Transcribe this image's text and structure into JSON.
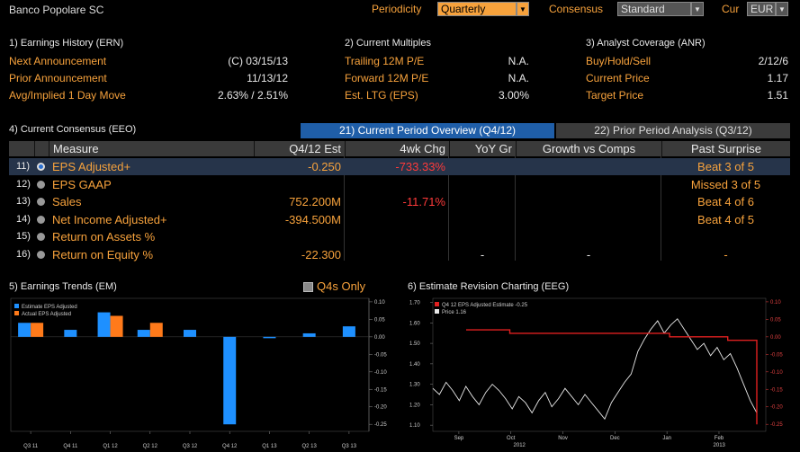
{
  "header": {
    "security": "Banco Popolare SC",
    "periodicity_label": "Periodicity",
    "periodicity_value": "Quarterly",
    "consensus_label": "Consensus",
    "consensus_value": "Standard",
    "cur_label": "Cur",
    "cur_value": "EUR"
  },
  "ern": {
    "title": "1) Earnings History (ERN)",
    "rows": [
      {
        "label": "Next Announcement",
        "value": "(C)  03/15/13"
      },
      {
        "label": "Prior Announcement",
        "value": "11/13/12"
      },
      {
        "label": "Avg/Implied 1 Day Move",
        "value": "2.63% / 2.51%"
      }
    ]
  },
  "multiples": {
    "title": "2) Current Multiples",
    "rows": [
      {
        "label": "Trailing 12M P/E",
        "value": "N.A."
      },
      {
        "label": "Forward 12M P/E",
        "value": "N.A."
      },
      {
        "label": "Est. LTG (EPS)",
        "value": "3.00%"
      }
    ]
  },
  "anr": {
    "title": "3) Analyst Coverage (ANR)",
    "rows": [
      {
        "label": "Buy/Hold/Sell",
        "value": "2/12/6"
      },
      {
        "label": "Current Price",
        "value": "1.17"
      },
      {
        "label": "Target Price",
        "value": "1.51"
      }
    ]
  },
  "eeo": {
    "title": "4) Current Consensus (EEO)",
    "tab1": "21) Current Period Overview (Q4/12)",
    "tab2": "22) Prior Period Analysis (Q3/12)",
    "columns": [
      "Measure",
      "Q4/12 Est",
      "4wk Chg",
      "YoY Gr",
      "Growth vs Comps",
      "Past Surprise"
    ],
    "rows": [
      {
        "num": "11)",
        "measure": "EPS Adjusted+",
        "est": "-0.250",
        "chg": "-733.33%",
        "yoy": "",
        "comps": "",
        "surprise": "Beat 3 of 5"
      },
      {
        "num": "12)",
        "measure": "EPS GAAP",
        "est": "",
        "chg": "",
        "yoy": "",
        "comps": "",
        "surprise": "Missed 3 of 5"
      },
      {
        "num": "13)",
        "measure": "Sales",
        "est": "752.200M",
        "chg": "-11.71%",
        "yoy": "",
        "comps": "",
        "surprise": "Beat 4 of 6"
      },
      {
        "num": "14)",
        "measure": "Net Income Adjusted+",
        "est": "-394.500M",
        "chg": "",
        "yoy": "",
        "comps": "",
        "surprise": "Beat 4 of 5"
      },
      {
        "num": "15)",
        "measure": "Return on Assets %",
        "est": "",
        "chg": "",
        "yoy": "",
        "comps": "",
        "surprise": ""
      },
      {
        "num": "16)",
        "measure": "Return on Equity %",
        "est": "-22.300",
        "chg": "",
        "yoy": "-",
        "comps": "-",
        "surprise": "-"
      }
    ]
  },
  "em": {
    "title": "5) Earnings Trends (EM)",
    "q4s_only": "Q4s Only"
  },
  "eeg": {
    "title": "6) Estimate Revision Charting (EEG)"
  },
  "colors": {
    "orange": "#f7a23c",
    "blue": "#1e90ff",
    "actual": "#ff7a1a",
    "red": "#e02020",
    "bg": "#000000"
  },
  "chart_data": [
    {
      "type": "bar",
      "categories": [
        "Q3 11",
        "Q4 11",
        "Q1 12",
        "Q2 12",
        "Q3 12",
        "Q4 12",
        "Q1 13",
        "Q2 13",
        "Q3 13"
      ],
      "legend": [
        "Estimate EPS Adjusted",
        "Actual EPS Adjusted"
      ],
      "series": [
        {
          "name": "Estimate EPS Adjusted",
          "values": [
            0.04,
            0.02,
            0.07,
            0.02,
            0.02,
            -0.25,
            0.0,
            0.01,
            0.03
          ]
        },
        {
          "name": "Actual EPS Adjusted",
          "values": [
            0.04,
            null,
            0.06,
            0.04,
            null,
            null,
            null,
            null,
            null
          ]
        }
      ],
      "yticks": [
        "0.10",
        "0.05",
        "0.00",
        "-0.05",
        "-0.10",
        "-0.15",
        "-0.20",
        "-0.25"
      ],
      "ylim": [
        -0.27,
        0.11
      ]
    },
    {
      "type": "line",
      "legend": [
        "Q4 12 EPS Adjusted Estimate  -0.25",
        "Price  1.16"
      ],
      "xticks": [
        "Sep",
        "Oct",
        "Nov",
        "Dec",
        "Jan",
        "Feb"
      ],
      "xyears": [
        "2012",
        "2013"
      ],
      "y_left_ticks": [
        "1.70",
        "1.60",
        "1.50",
        "1.40",
        "1.30",
        "1.20",
        "1.10"
      ],
      "y_right_ticks": [
        "0.10",
        "0.05",
        "0.00",
        "-0.05",
        "-0.10",
        "-0.15",
        "-0.20",
        "-0.25"
      ],
      "price_ylim": [
        1.07,
        1.72
      ],
      "estimate_ylim": [
        -0.27,
        0.11
      ],
      "price": [
        1.28,
        1.25,
        1.31,
        1.27,
        1.22,
        1.29,
        1.24,
        1.2,
        1.26,
        1.3,
        1.27,
        1.23,
        1.18,
        1.24,
        1.21,
        1.16,
        1.22,
        1.26,
        1.19,
        1.23,
        1.28,
        1.24,
        1.2,
        1.25,
        1.21,
        1.17,
        1.13,
        1.21,
        1.26,
        1.31,
        1.35,
        1.46,
        1.52,
        1.57,
        1.61,
        1.55,
        1.59,
        1.62,
        1.57,
        1.52,
        1.47,
        1.5,
        1.44,
        1.48,
        1.42,
        1.45,
        1.38,
        1.3,
        1.22,
        1.16
      ],
      "estimate": [
        0.02,
        0.02,
        0.02,
        0.01,
        0.01,
        0.01,
        0.01,
        0.01,
        0.01,
        0.01,
        0.01,
        0.01,
        0.01,
        0.01,
        0.0,
        0.0,
        0.0,
        0.0,
        -0.01,
        -0.01,
        -0.25
      ]
    }
  ]
}
